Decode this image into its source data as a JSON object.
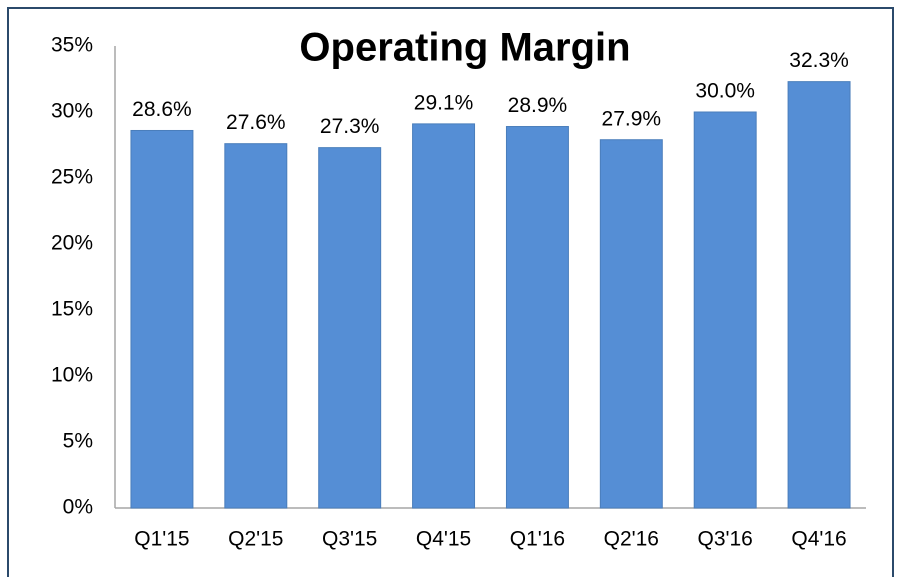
{
  "chart_data": {
    "type": "bar",
    "title": "Operating Margin",
    "categories": [
      "Q1'15",
      "Q2'15",
      "Q3'15",
      "Q4'15",
      "Q1'16",
      "Q2'16",
      "Q3'16",
      "Q4'16"
    ],
    "values": [
      28.6,
      27.6,
      27.3,
      29.1,
      28.9,
      27.9,
      30.0,
      32.3
    ],
    "value_labels": [
      "28.6%",
      "27.6%",
      "27.3%",
      "29.1%",
      "28.9%",
      "27.9%",
      "30.0%",
      "32.3%"
    ],
    "color": "#558ed5",
    "ylim": [
      0,
      35
    ],
    "yticks": [
      {
        "value": 0,
        "label": "0%"
      },
      {
        "value": 5,
        "label": "5%"
      },
      {
        "value": 10,
        "label": "10%"
      },
      {
        "value": 15,
        "label": "15%"
      },
      {
        "value": 20,
        "label": "20%"
      },
      {
        "value": 25,
        "label": "25%"
      },
      {
        "value": 30,
        "label": "30%"
      },
      {
        "value": 35,
        "label": "35%"
      }
    ],
    "grid": false
  }
}
